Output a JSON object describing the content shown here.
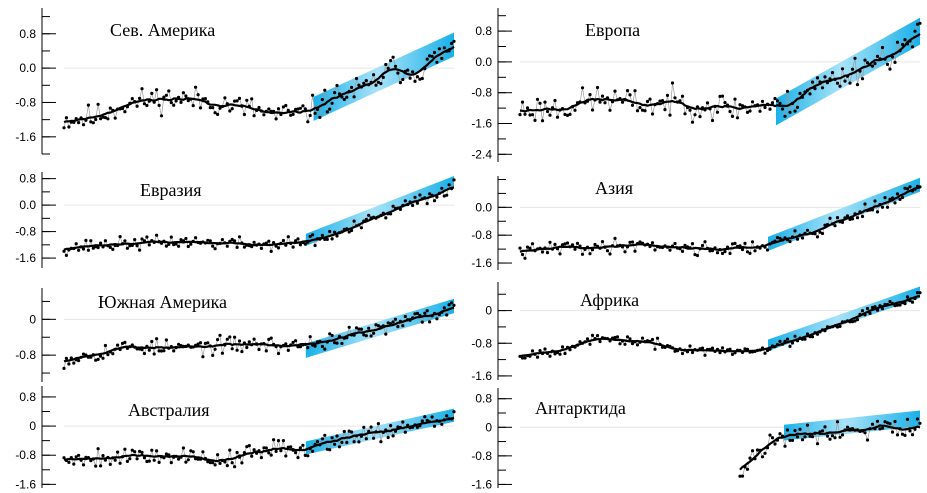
{
  "chart_data": [
    {
      "type": "line",
      "title": "Сев. Америка",
      "yticks": [
        0.8,
        0.0,
        -0.8,
        -1.6
      ],
      "ytick_labels": [
        "0.8",
        "0.0",
        "-0.8",
        "-1.6"
      ],
      "ylim": [
        -2.0,
        1.4
      ],
      "xlim": [
        0,
        100
      ],
      "trend": {
        "x0": 64,
        "x1": 100,
        "y0": -0.95,
        "y1": 0.55,
        "band": 0.28
      },
      "anchors": [
        [
          0,
          -1.2
        ],
        [
          8,
          -1.15
        ],
        [
          15,
          -0.85
        ],
        [
          25,
          -0.7
        ],
        [
          35,
          -0.75
        ],
        [
          45,
          -0.9
        ],
        [
          55,
          -1.1
        ],
        [
          62,
          -1.05
        ],
        [
          70,
          -0.65
        ],
        [
          78,
          -0.45
        ],
        [
          84,
          0.0
        ],
        [
          90,
          -0.1
        ],
        [
          100,
          0.5
        ]
      ],
      "noise": 0.45,
      "seed": 11
    },
    {
      "type": "line",
      "title": "Европа",
      "yticks": [
        0.8,
        0.0,
        -0.8,
        -1.6,
        -2.4
      ],
      "ytick_labels": [
        "0.8",
        "0.0",
        "-0.8",
        "-1.6",
        "-2.4"
      ],
      "ylim": [
        -2.6,
        1.4
      ],
      "xlim": [
        0,
        100
      ],
      "trend": {
        "x0": 64,
        "x1": 100,
        "y0": -1.3,
        "y1": 0.8,
        "band": 0.35
      },
      "anchors": [
        [
          0,
          -1.25
        ],
        [
          10,
          -1.2
        ],
        [
          20,
          -0.95
        ],
        [
          30,
          -1.1
        ],
        [
          40,
          -1.05
        ],
        [
          48,
          -1.15
        ],
        [
          55,
          -1.2
        ],
        [
          60,
          -1.1
        ],
        [
          66,
          -1.2
        ],
        [
          72,
          -0.7
        ],
        [
          80,
          -0.4
        ],
        [
          88,
          0.0
        ],
        [
          95,
          0.3
        ],
        [
          100,
          0.7
        ]
      ],
      "noise": 0.55,
      "seed": 23
    },
    {
      "type": "line",
      "title": "Евразия",
      "yticks": [
        0.8,
        0.0,
        -0.8,
        -1.6
      ],
      "ytick_labels": [
        "0.8",
        "0.0",
        "-0.8",
        "-1.6"
      ],
      "ylim": [
        -1.9,
        1.0
      ],
      "xlim": [
        0,
        100
      ],
      "trend": {
        "x0": 62,
        "x1": 100,
        "y0": -1.05,
        "y1": 0.7,
        "band": 0.18
      },
      "anchors": [
        [
          0,
          -1.3
        ],
        [
          10,
          -1.2
        ],
        [
          20,
          -1.15
        ],
        [
          30,
          -1.1
        ],
        [
          40,
          -1.15
        ],
        [
          50,
          -1.2
        ],
        [
          60,
          -1.15
        ],
        [
          66,
          -1.0
        ],
        [
          72,
          -0.8
        ],
        [
          80,
          -0.4
        ],
        [
          88,
          0.0
        ],
        [
          94,
          0.25
        ],
        [
          100,
          0.6
        ]
      ],
      "noise": 0.3,
      "seed": 37
    },
    {
      "type": "line",
      "title": "Азия",
      "yticks": [
        0.0,
        -0.8,
        -1.6
      ],
      "ytick_labels": [
        "0.0",
        "-0.8",
        "-1.6"
      ],
      "ylim": [
        -1.8,
        0.9
      ],
      "xlim": [
        0,
        100
      ],
      "trend": {
        "x0": 62,
        "x1": 100,
        "y0": -1.05,
        "y1": 0.65,
        "band": 0.2
      },
      "anchors": [
        [
          0,
          -1.3
        ],
        [
          10,
          -1.15
        ],
        [
          20,
          -1.15
        ],
        [
          30,
          -1.05
        ],
        [
          40,
          -1.15
        ],
        [
          50,
          -1.2
        ],
        [
          58,
          -1.15
        ],
        [
          65,
          -1.0
        ],
        [
          72,
          -0.75
        ],
        [
          80,
          -0.4
        ],
        [
          88,
          0.0
        ],
        [
          94,
          0.25
        ],
        [
          100,
          0.6
        ]
      ],
      "noise": 0.3,
      "seed": 41
    },
    {
      "type": "line",
      "title": "Южная Америка",
      "yticks": [
        0,
        -0.8
      ],
      "ytick_labels": [
        "0",
        "-0.8"
      ],
      "ylim": [
        -1.4,
        0.7
      ],
      "xlim": [
        0,
        100
      ],
      "trend": {
        "x0": 62,
        "x1": 100,
        "y0": -0.7,
        "y1": 0.3,
        "band": 0.16
      },
      "anchors": [
        [
          0,
          -0.9
        ],
        [
          8,
          -0.75
        ],
        [
          18,
          -0.6
        ],
        [
          28,
          -0.65
        ],
        [
          38,
          -0.6
        ],
        [
          48,
          -0.55
        ],
        [
          58,
          -0.6
        ],
        [
          66,
          -0.5
        ],
        [
          74,
          -0.35
        ],
        [
          82,
          -0.2
        ],
        [
          90,
          0.0
        ],
        [
          100,
          0.25
        ]
      ],
      "noise": 0.28,
      "seed": 53
    },
    {
      "type": "line",
      "title": "Африка",
      "yticks": [
        0,
        -0.8,
        -1.6
      ],
      "ytick_labels": [
        "0",
        "-0.8",
        "-1.6"
      ],
      "ylim": [
        -1.7,
        0.7
      ],
      "xlim": [
        0,
        100
      ],
      "trend": {
        "x0": 62,
        "x1": 100,
        "y0": -0.85,
        "y1": 0.45,
        "band": 0.14
      },
      "anchors": [
        [
          0,
          -1.1
        ],
        [
          10,
          -0.95
        ],
        [
          20,
          -0.7
        ],
        [
          30,
          -0.75
        ],
        [
          40,
          -0.95
        ],
        [
          50,
          -1.0
        ],
        [
          58,
          -1.0
        ],
        [
          65,
          -0.85
        ],
        [
          72,
          -0.6
        ],
        [
          80,
          -0.3
        ],
        [
          88,
          0.0
        ],
        [
          94,
          0.2
        ],
        [
          100,
          0.4
        ]
      ],
      "noise": 0.18,
      "seed": 67
    },
    {
      "type": "line",
      "title": "Австралия",
      "yticks": [
        0.8,
        0,
        -0.8,
        -1.6
      ],
      "ytick_labels": [
        "0.8",
        "0",
        "-0.8",
        "-1.6"
      ],
      "ylim": [
        -1.7,
        1.1
      ],
      "xlim": [
        0,
        100
      ],
      "trend": {
        "x0": 62,
        "x1": 100,
        "y0": -0.6,
        "y1": 0.3,
        "band": 0.18
      },
      "anchors": [
        [
          0,
          -0.9
        ],
        [
          10,
          -0.85
        ],
        [
          20,
          -0.8
        ],
        [
          30,
          -0.8
        ],
        [
          38,
          -0.95
        ],
        [
          46,
          -0.8
        ],
        [
          55,
          -0.65
        ],
        [
          62,
          -0.6
        ],
        [
          70,
          -0.35
        ],
        [
          80,
          -0.15
        ],
        [
          90,
          0.0
        ],
        [
          100,
          0.2
        ]
      ],
      "noise": 0.4,
      "seed": 79
    },
    {
      "type": "line",
      "title": "Антарктида",
      "yticks": [
        0.8,
        0,
        -0.8,
        -1.6
      ],
      "ytick_labels": [
        "0.8",
        "0",
        "-0.8",
        "-1.6"
      ],
      "ylim": [
        -1.7,
        1.1
      ],
      "xlim": [
        0,
        100
      ],
      "x_start": 55,
      "trend": {
        "x0": 66,
        "x1": 100,
        "y0": -0.15,
        "y1": 0.25,
        "band": 0.22
      },
      "anchors": [
        [
          55,
          -1.2
        ],
        [
          60,
          -0.7
        ],
        [
          64,
          -0.3
        ],
        [
          68,
          -0.15
        ],
        [
          74,
          -0.15
        ],
        [
          80,
          -0.1
        ],
        [
          86,
          -0.05
        ],
        [
          90,
          0.05
        ],
        [
          95,
          -0.05
        ],
        [
          100,
          0.0
        ]
      ],
      "noise": 0.45,
      "seed": 91
    }
  ],
  "colors": {
    "trend_band": "#00a8e6",
    "trend_band_light": "#9fe0f7",
    "smooth_line": "#000000",
    "raw_line": "#9a9a9a",
    "points": "#000000",
    "zero_line": "#e6e6e6"
  }
}
